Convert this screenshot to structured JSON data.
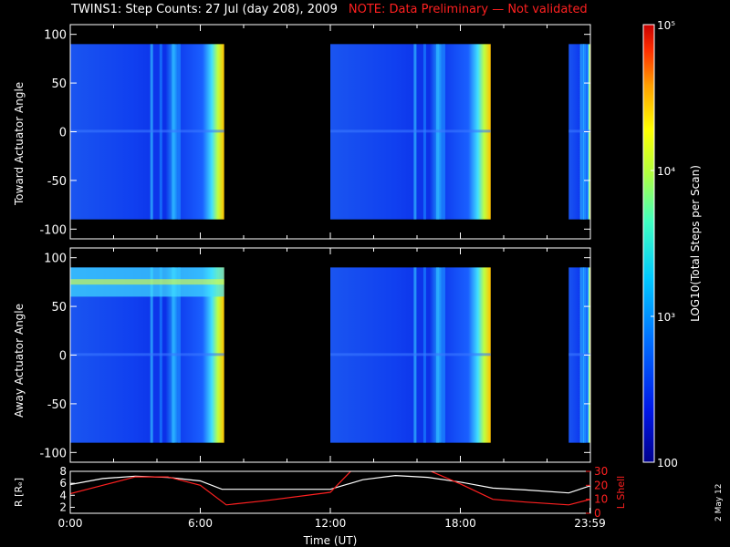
{
  "title": "TWINS1: Step Counts: 27 Jul (day 208), 2009",
  "note": "NOTE: Data Preliminary — Not validated",
  "date_stamp": "2 May 12",
  "colors": {
    "background": "#000000",
    "axes": "#ffffff",
    "note": "#ff2020",
    "rshell_line": "#ffffff",
    "lshell_line": "#ff2020"
  },
  "chart_data": [
    {
      "type": "heatmap",
      "name": "toward",
      "ylabel": "Toward Actuator Angle",
      "ylim": [
        -110,
        110
      ],
      "yticks": [
        100,
        50,
        0,
        -50,
        -100
      ],
      "xlim": [
        0,
        24
      ],
      "data_segments_hours": [
        [
          0.0,
          7.1
        ],
        [
          12.0,
          19.4
        ],
        [
          23.0,
          24.0
        ]
      ]
    },
    {
      "type": "heatmap",
      "name": "away",
      "ylabel": "Away Actuator Angle",
      "ylim": [
        -110,
        110
      ],
      "yticks": [
        100,
        50,
        0,
        -50,
        -100
      ],
      "xlim": [
        0,
        24
      ],
      "data_segments_hours": [
        [
          0.0,
          7.1
        ],
        [
          12.0,
          19.4
        ],
        [
          23.0,
          24.0
        ]
      ]
    },
    {
      "type": "line",
      "name": "orbit",
      "xlabel": "Time (UT)",
      "ylabel_left": "R [Rₑ]",
      "ylabel_right": "L Shell",
      "ylim_left": [
        1,
        8
      ],
      "ylim_right": [
        0,
        30
      ],
      "yticks_left": [
        2,
        4,
        6,
        8
      ],
      "yticks_right": [
        0,
        10,
        20,
        30
      ],
      "xticks": [
        "0:00",
        "6:00",
        "12:00",
        "18:00",
        "23:59"
      ],
      "xtick_hours": [
        0,
        6,
        12,
        18,
        23.98
      ],
      "series": [
        {
          "name": "R",
          "axis": "left",
          "color": "#ffffff",
          "x": [
            0,
            1.5,
            3,
            4.5,
            6,
            7,
            9,
            12,
            13.5,
            15,
            16.5,
            18,
            19.5,
            21,
            23,
            24
          ],
          "y": [
            5.8,
            6.8,
            7.2,
            7.0,
            6.4,
            5.0,
            5.0,
            5.0,
            6.6,
            7.3,
            7.0,
            6.2,
            5.2,
            4.9,
            4.4,
            5.6
          ]
        },
        {
          "name": "L Shell",
          "axis": "right",
          "color": "#ff2020",
          "x": [
            0,
            1.5,
            3,
            4.5,
            6,
            7.2,
            9,
            12,
            13,
            16.5,
            18,
            19.5,
            21,
            23,
            24
          ],
          "y": [
            14,
            20,
            26,
            26,
            20,
            6,
            9,
            15,
            31,
            31,
            21,
            10,
            8,
            6,
            10
          ]
        }
      ]
    },
    {
      "type": "colorbar",
      "name": "colorbar",
      "label": "LOG10(Total Steps per Scan)",
      "tick_labels": [
        "100",
        "10³",
        "10⁴",
        "10⁵"
      ],
      "tick_values": [
        100,
        1000,
        10000,
        100000
      ],
      "range": [
        100,
        100000
      ],
      "scale": "log"
    }
  ]
}
